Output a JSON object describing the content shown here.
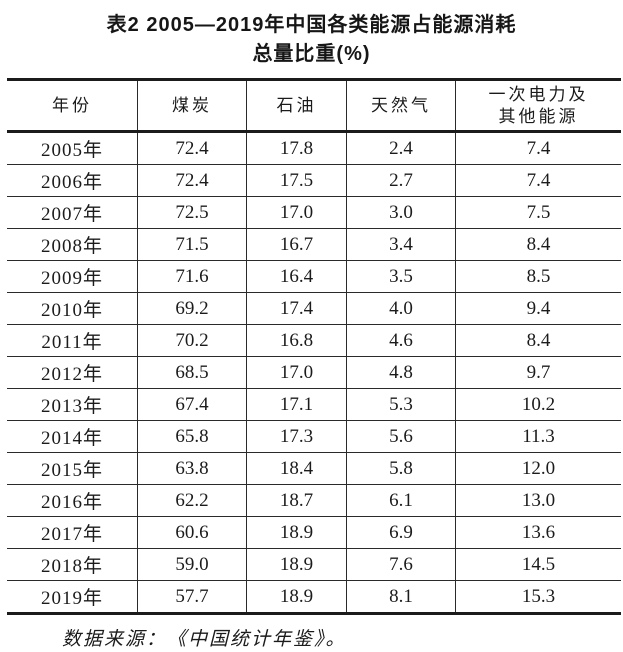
{
  "title": {
    "line1": "表2 2005—2019年中国各类能源占能源消耗",
    "line2": "总量比重(%)"
  },
  "table": {
    "columns": [
      "年份",
      "煤炭",
      "石油",
      "天然气",
      "一次电力及\n其他能源"
    ],
    "rows": [
      {
        "year": "2005年",
        "values": [
          "72.4",
          "17.8",
          "2.4",
          "7.4"
        ]
      },
      {
        "year": "2006年",
        "values": [
          "72.4",
          "17.5",
          "2.7",
          "7.4"
        ]
      },
      {
        "year": "2007年",
        "values": [
          "72.5",
          "17.0",
          "3.0",
          "7.5"
        ]
      },
      {
        "year": "2008年",
        "values": [
          "71.5",
          "16.7",
          "3.4",
          "8.4"
        ]
      },
      {
        "year": "2009年",
        "values": [
          "71.6",
          "16.4",
          "3.5",
          "8.5"
        ]
      },
      {
        "year": "2010年",
        "values": [
          "69.2",
          "17.4",
          "4.0",
          "9.4"
        ]
      },
      {
        "year": "2011年",
        "values": [
          "70.2",
          "16.8",
          "4.6",
          "8.4"
        ]
      },
      {
        "year": "2012年",
        "values": [
          "68.5",
          "17.0",
          "4.8",
          "9.7"
        ]
      },
      {
        "year": "2013年",
        "values": [
          "67.4",
          "17.1",
          "5.3",
          "10.2"
        ]
      },
      {
        "year": "2014年",
        "values": [
          "65.8",
          "17.3",
          "5.6",
          "11.3"
        ]
      },
      {
        "year": "2015年",
        "values": [
          "63.8",
          "18.4",
          "5.8",
          "12.0"
        ]
      },
      {
        "year": "2016年",
        "values": [
          "62.2",
          "18.7",
          "6.1",
          "13.0"
        ]
      },
      {
        "year": "2017年",
        "values": [
          "60.6",
          "18.9",
          "6.9",
          "13.6"
        ]
      },
      {
        "year": "2018年",
        "values": [
          "59.0",
          "18.9",
          "7.6",
          "14.5"
        ]
      },
      {
        "year": "2019年",
        "values": [
          "57.7",
          "18.9",
          "8.1",
          "15.3"
        ]
      }
    ]
  },
  "footer": {
    "source": "数据来源：《中国统计年鉴》。"
  },
  "colors": {
    "background": "#ffffff",
    "text": "#1b1b1b",
    "border": "#1b1b1b"
  }
}
